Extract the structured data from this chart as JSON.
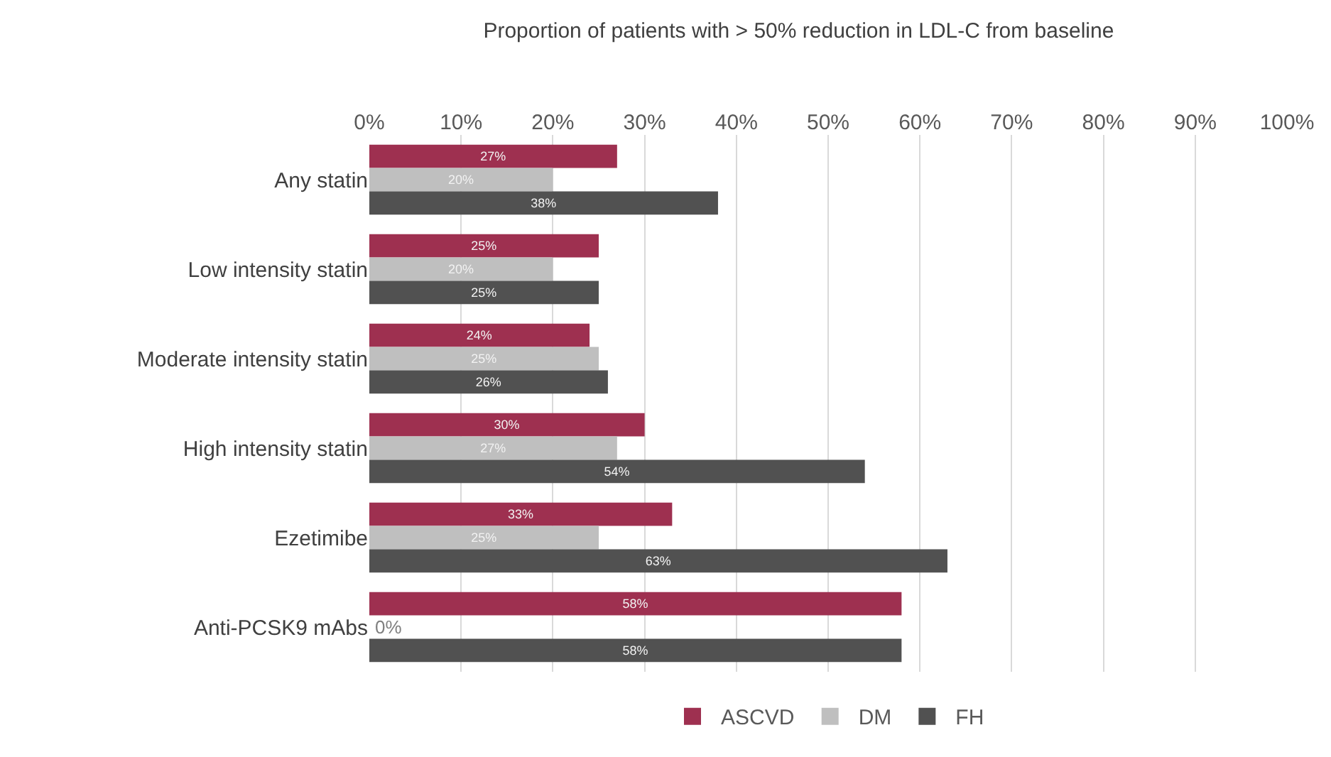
{
  "chart_data": {
    "type": "bar",
    "orientation": "horizontal",
    "title": "Proportion of patients with > 50% reduction in LDL-C from baseline",
    "categories": [
      "Any statin",
      "Low intensity statin",
      "Moderate intensity statin",
      "High intensity statin",
      "Ezetimibe",
      "Anti-PCSK9 mAbs"
    ],
    "series": [
      {
        "name": "ASCVD",
        "color": "#9e3050",
        "values": [
          27,
          25,
          24,
          30,
          33,
          58
        ],
        "value_labels": [
          "27%",
          "25%",
          "24%",
          "30%",
          "33%",
          "58%"
        ]
      },
      {
        "name": "DM",
        "color": "#bfbfbf",
        "values": [
          20,
          20,
          25,
          27,
          25,
          0
        ],
        "value_labels": [
          "20%",
          "20%",
          "25%",
          "27%",
          "25%",
          "0%"
        ]
      },
      {
        "name": "FH",
        "color": "#515151",
        "values": [
          38,
          25,
          26,
          54,
          63,
          58
        ],
        "value_labels": [
          "38%",
          "25%",
          "26%",
          "54%",
          "63%",
          "58%"
        ]
      }
    ],
    "xlim": [
      0,
      100
    ],
    "xticks": [
      {
        "value": 0,
        "label": "0%"
      },
      {
        "value": 10,
        "label": "10%"
      },
      {
        "value": 20,
        "label": "20%"
      },
      {
        "value": 30,
        "label": "30%"
      },
      {
        "value": 40,
        "label": "40%"
      },
      {
        "value": 50,
        "label": "50%"
      },
      {
        "value": 60,
        "label": "60%"
      },
      {
        "value": 70,
        "label": "70%"
      },
      {
        "value": 80,
        "label": "80%"
      },
      {
        "value": 90,
        "label": "90%"
      },
      {
        "value": 100,
        "label": "100%"
      }
    ],
    "grid": "x",
    "legend": "bottom"
  }
}
